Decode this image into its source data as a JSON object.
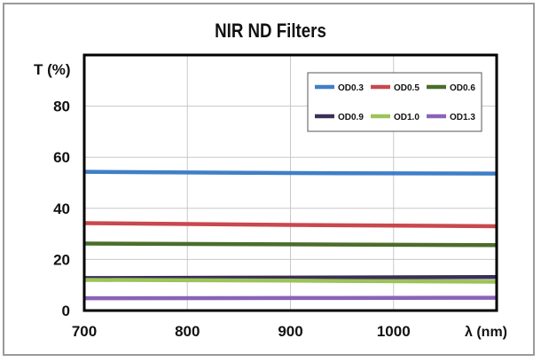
{
  "chart_data": {
    "type": "line",
    "title": "NIR ND Filters",
    "ylabel": "T (%)",
    "xlabel": "λ (nm)",
    "xlim": [
      700,
      1100
    ],
    "ylim": [
      0,
      100
    ],
    "x_ticks": [
      "700",
      "800",
      "900",
      "1000"
    ],
    "y_ticks": [
      "0",
      "20",
      "40",
      "60",
      "80"
    ],
    "grid": true,
    "legend_position": "top-right",
    "series": [
      {
        "name": "OD0.3",
        "color": "#3f7fc7",
        "x": [
          700,
          900,
          1100
        ],
        "y": [
          54.3,
          53.8,
          53.6
        ]
      },
      {
        "name": "OD0.5",
        "color": "#c9484d",
        "x": [
          700,
          900,
          1100
        ],
        "y": [
          34.2,
          33.5,
          33.0
        ]
      },
      {
        "name": "OD0.6",
        "color": "#4a6e2a",
        "x": [
          700,
          900,
          1100
        ],
        "y": [
          26.2,
          25.9,
          25.6
        ]
      },
      {
        "name": "OD0.9",
        "color": "#3a2f55",
        "x": [
          700,
          900,
          1100
        ],
        "y": [
          12.7,
          12.9,
          13.1
        ]
      },
      {
        "name": "OD1.0",
        "color": "#9cc35a",
        "x": [
          700,
          900,
          1100
        ],
        "y": [
          12.0,
          11.7,
          11.3
        ]
      },
      {
        "name": "OD1.3",
        "color": "#8a63b8",
        "x": [
          700,
          900,
          1100
        ],
        "y": [
          4.8,
          4.9,
          5.0
        ]
      }
    ]
  }
}
